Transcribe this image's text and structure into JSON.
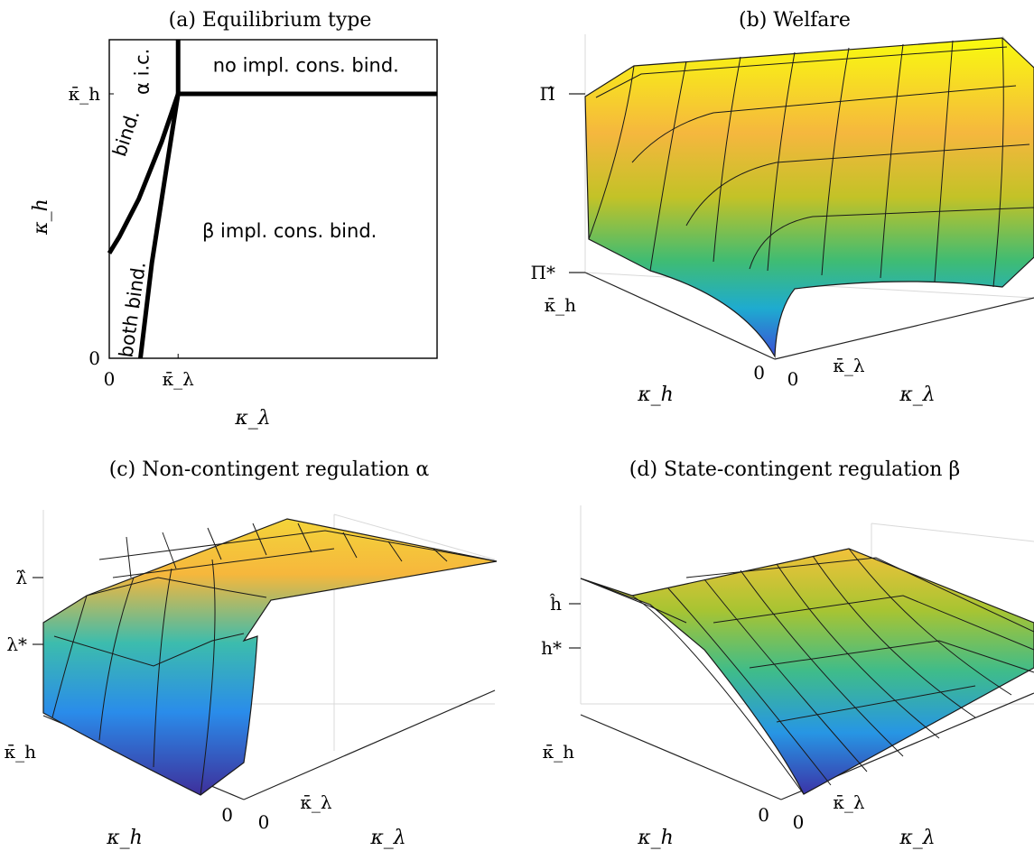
{
  "figure": {
    "panels": [
      {
        "id": "a",
        "title": "(a) Equilibrium type",
        "xlabel": "κ_λ",
        "ylabel": "κ_h",
        "xticks": [
          "0",
          "κ̄_λ"
        ],
        "yticks": [
          "0",
          "κ̄_h"
        ],
        "regions": [
          "no impl. cons. bind.",
          "α i.c.",
          "bind.",
          "β impl. cons. bind.",
          "both bind."
        ]
      },
      {
        "id": "b",
        "title": "(b) Welfare",
        "xlabel": "κ_λ",
        "ylabel": "κ_h",
        "zticks": [
          "Π̂",
          "Π*"
        ],
        "xticks": [
          "0",
          "κ̄_λ"
        ],
        "yticks": [
          "0",
          "κ̄_h"
        ]
      },
      {
        "id": "c",
        "title": "(c) Non-contingent regulation α",
        "xlabel": "κ_λ",
        "ylabel": "κ_h",
        "zticks": [
          "λ̂",
          "λ*"
        ],
        "xticks": [
          "0",
          "κ̄_λ"
        ],
        "yticks": [
          "0",
          "κ̄_h"
        ]
      },
      {
        "id": "d",
        "title": "(d) State-contingent regulation β",
        "xlabel": "κ_λ",
        "ylabel": "κ_h",
        "zticks": [
          "ĥ",
          "h*"
        ],
        "xticks": [
          "0",
          "κ̄_λ"
        ],
        "yticks": [
          "0",
          "κ̄_h"
        ]
      }
    ]
  },
  "chart_data": [
    {
      "type": "line",
      "panel": "a",
      "title": "(a) Equilibrium type",
      "xlabel": "κ_λ",
      "ylabel": "κ_h",
      "xlim": [
        0,
        1
      ],
      "ylim": [
        0,
        1
      ],
      "x_ticks": [
        {
          "value": 0,
          "label": "0"
        },
        {
          "value": 0.21,
          "label": "κ̄_λ"
        }
      ],
      "y_ticks": [
        {
          "value": 0,
          "label": "0"
        },
        {
          "value": 0.83,
          "label": "κ̄_h"
        }
      ],
      "series": [
        {
          "points": [
            [
              0.21,
              1.0
            ],
            [
              0.21,
              0.83
            ]
          ]
        },
        {
          "points": [
            [
              0.21,
              0.83
            ],
            [
              1.0,
              0.83
            ]
          ]
        },
        {
          "points": [
            [
              0.21,
              0.83
            ],
            [
              0.16,
              0.68
            ],
            [
              0.09,
              0.5
            ],
            [
              0.03,
              0.38
            ],
            [
              0.0,
              0.33
            ]
          ]
        },
        {
          "points": [
            [
              0.21,
              0.83
            ],
            [
              0.175,
              0.6
            ],
            [
              0.13,
              0.3
            ],
            [
              0.095,
              0.0
            ]
          ]
        }
      ],
      "regions": [
        {
          "label": "no impl. cons. bind.",
          "x": 0.6,
          "y": 0.9
        },
        {
          "label": "α i.c.",
          "x": 0.12,
          "y": 0.9
        },
        {
          "label": "bind.",
          "x": 0.07,
          "y": 0.7
        },
        {
          "label": "β impl. cons. bind.",
          "x": 0.55,
          "y": 0.38
        },
        {
          "label": "both bind.",
          "x": 0.09,
          "y": 0.15
        }
      ],
      "grid": false
    },
    {
      "type": "surface",
      "panel": "b",
      "title": "(b) Welfare",
      "xlabel": "κ_λ",
      "ylabel": "κ_h",
      "zlabel": "",
      "xlim": [
        0,
        1
      ],
      "ylim": [
        0,
        1
      ],
      "zlim": [
        0,
        1
      ],
      "z_ticks": [
        {
          "value": 1.0,
          "label": "Π̂"
        },
        {
          "value": 0.0,
          "label": "Π*"
        }
      ],
      "x_ticks": [
        {
          "value": 0,
          "label": "0"
        },
        {
          "value": 0.2,
          "label": "κ̄_λ"
        }
      ],
      "y_ticks": [
        {
          "value": 0,
          "label": "0"
        },
        {
          "value": 0.8,
          "label": "κ̄_h"
        }
      ],
      "colormap": "parula",
      "grid": true
    },
    {
      "type": "surface",
      "panel": "c",
      "title": "(c) Non-contingent regulation α",
      "xlabel": "κ_λ",
      "ylabel": "κ_h",
      "zlabel": "",
      "xlim": [
        0,
        1
      ],
      "ylim": [
        0,
        1
      ],
      "zlim": [
        0,
        1
      ],
      "z_ticks": [
        {
          "value": 0.92,
          "label": "λ̂"
        },
        {
          "value": 0.55,
          "label": "λ*"
        }
      ],
      "x_ticks": [
        {
          "value": 0,
          "label": "0"
        },
        {
          "value": 0.2,
          "label": "κ̄_λ"
        }
      ],
      "y_ticks": [
        {
          "value": 0,
          "label": "0"
        },
        {
          "value": 0.8,
          "label": "κ̄_h"
        }
      ],
      "colormap": "parula",
      "grid": true
    },
    {
      "type": "surface",
      "panel": "d",
      "title": "(d) State-contingent regulation β",
      "xlabel": "κ_λ",
      "ylabel": "κ_h",
      "zlabel": "",
      "xlim": [
        0,
        1
      ],
      "ylim": [
        0,
        1
      ],
      "zlim": [
        0,
        1
      ],
      "z_ticks": [
        {
          "value": 0.72,
          "label": "ĥ"
        },
        {
          "value": 0.5,
          "label": "h*"
        }
      ],
      "x_ticks": [
        {
          "value": 0,
          "label": "0"
        },
        {
          "value": 0.2,
          "label": "κ̄_λ"
        }
      ],
      "y_ticks": [
        {
          "value": 0,
          "label": "0"
        },
        {
          "value": 0.8,
          "label": "κ̄_h"
        }
      ],
      "colormap": "parula",
      "grid": true
    }
  ]
}
